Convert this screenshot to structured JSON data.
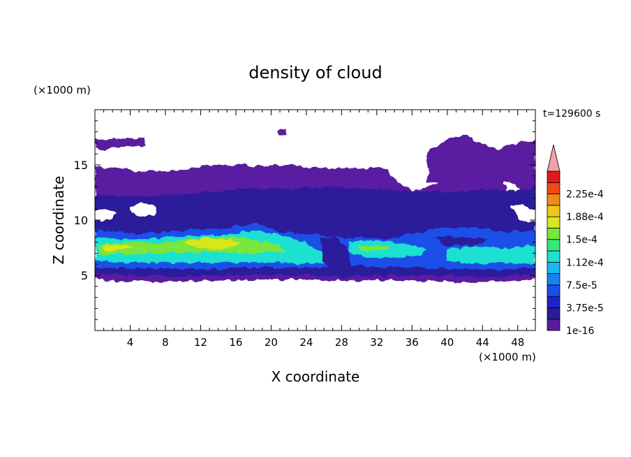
{
  "chart_data": {
    "type": "heatmap",
    "title": "density of cloud",
    "xlabel": "X coordinate",
    "ylabel": "Z coordinate",
    "x_unit": "(×1000 m)",
    "y_unit": "(×1000 m)",
    "time_label": "t=129600 s",
    "xlim": [
      0,
      50
    ],
    "ylim": [
      0,
      20
    ],
    "x_ticks": [
      4,
      8,
      12,
      16,
      20,
      24,
      28,
      32,
      36,
      40,
      44,
      48
    ],
    "x_tick_labels": [
      "4",
      "8",
      "12",
      "16",
      "20",
      "24",
      "28",
      "32",
      "36",
      "40",
      "44",
      "48"
    ],
    "y_ticks": [
      5,
      10,
      15
    ],
    "y_tick_labels": [
      "5",
      "10",
      "15"
    ],
    "colorbar": {
      "levels": [
        1e-16,
        1.875e-05,
        3.75e-05,
        5.625e-05,
        7.5e-05,
        9.375e-05,
        0.0001125,
        0.00013125,
        0.00015,
        0.00016875,
        0.0001875,
        0.00020625,
        0.000225,
        0.00024375
      ],
      "labels": [
        "2.25e-4",
        "1.88e-4",
        "1.5e-4",
        "1.12e-4",
        "7.5e-5",
        "3.75e-5",
        "1e-16"
      ],
      "colors": [
        "#5a1aa0",
        "#2a1a9a",
        "#1a24c8",
        "#1a50e8",
        "#1a82f0",
        "#18b8f0",
        "#1ee0d0",
        "#3ae67a",
        "#7ae63a",
        "#d8e61e",
        "#f0c81a",
        "#f08a1a",
        "#f04a1a",
        "#e01a1a"
      ],
      "over_color": "#f4a0a8"
    },
    "bands": [
      {
        "z_range": [
          4.5,
          15.0
        ],
        "level": "1e-16 to 1.875e-5",
        "color": "#5a1aa0"
      },
      {
        "z_range": [
          5.0,
          12.5
        ],
        "level": "1.875e-5 to 5.6e-5",
        "color": "#2a1a9a"
      },
      {
        "z_range": [
          5.5,
          9.5
        ],
        "level": "5.6e-5 to 9.4e-5",
        "color": "#1a50e8"
      },
      {
        "z_range": [
          6.0,
          8.5
        ],
        "level": "9.4e-5 to 1.3e-4",
        "color": "#1ee0d0"
      },
      {
        "x_range": [
          2,
          20
        ],
        "z_range": [
          6.8,
          8.4
        ],
        "level": "1.3e-4 to 1.7e-4",
        "color": "#7ae63a"
      },
      {
        "x_range": [
          10,
          17
        ],
        "z_range": [
          7.2,
          8.2
        ],
        "level": "1.7e-4 to 1.9e-4",
        "color": "#d8e61e"
      }
    ]
  }
}
